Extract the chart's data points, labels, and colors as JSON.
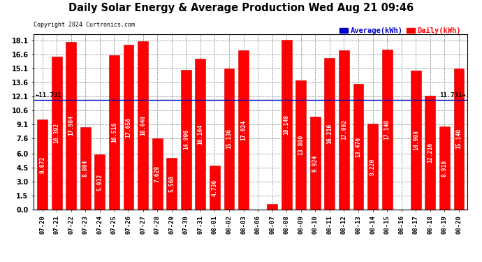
{
  "title": "Daily Solar Energy & Average Production Wed Aug 21 09:46",
  "copyright": "Copyright 2024 Curtronics.com",
  "legend_avg": "Average(kWh)",
  "legend_daily": "Daily(kWh)",
  "average_value": 11.731,
  "categories": [
    "07-20",
    "07-21",
    "07-22",
    "07-23",
    "07-24",
    "07-25",
    "07-26",
    "07-27",
    "07-28",
    "07-29",
    "07-30",
    "07-31",
    "08-01",
    "08-02",
    "08-03",
    "08-06",
    "08-07",
    "08-08",
    "08-09",
    "08-10",
    "08-11",
    "08-12",
    "08-13",
    "08-14",
    "08-15",
    "08-16",
    "08-17",
    "08-18",
    "08-19",
    "08-20"
  ],
  "values": [
    9.672,
    16.392,
    17.984,
    8.804,
    5.932,
    16.516,
    17.656,
    18.048,
    7.628,
    5.56,
    14.996,
    16.164,
    4.736,
    15.136,
    17.024,
    0.0,
    0.636,
    18.148,
    13.88,
    9.924,
    16.216,
    17.092,
    13.476,
    9.22,
    17.148,
    0.0,
    14.908,
    12.216,
    8.916,
    15.14
  ],
  "bar_color": "#ff0000",
  "bar_edge_color": "#cc0000",
  "avg_line_color": "#0000bb",
  "avg_label_color": "#000000",
  "title_color": "#000000",
  "copyright_color": "#000000",
  "legend_avg_color": "#0000cc",
  "legend_daily_color": "#ff0000",
  "bg_color": "#ffffff",
  "grid_color": "#999999",
  "yticks": [
    0.0,
    1.5,
    3.0,
    4.5,
    6.0,
    7.6,
    9.1,
    10.6,
    12.1,
    13.6,
    15.1,
    16.6,
    18.1
  ],
  "ylim": [
    0.0,
    18.8
  ],
  "value_fontsize": 5.8,
  "bar_width": 0.72
}
